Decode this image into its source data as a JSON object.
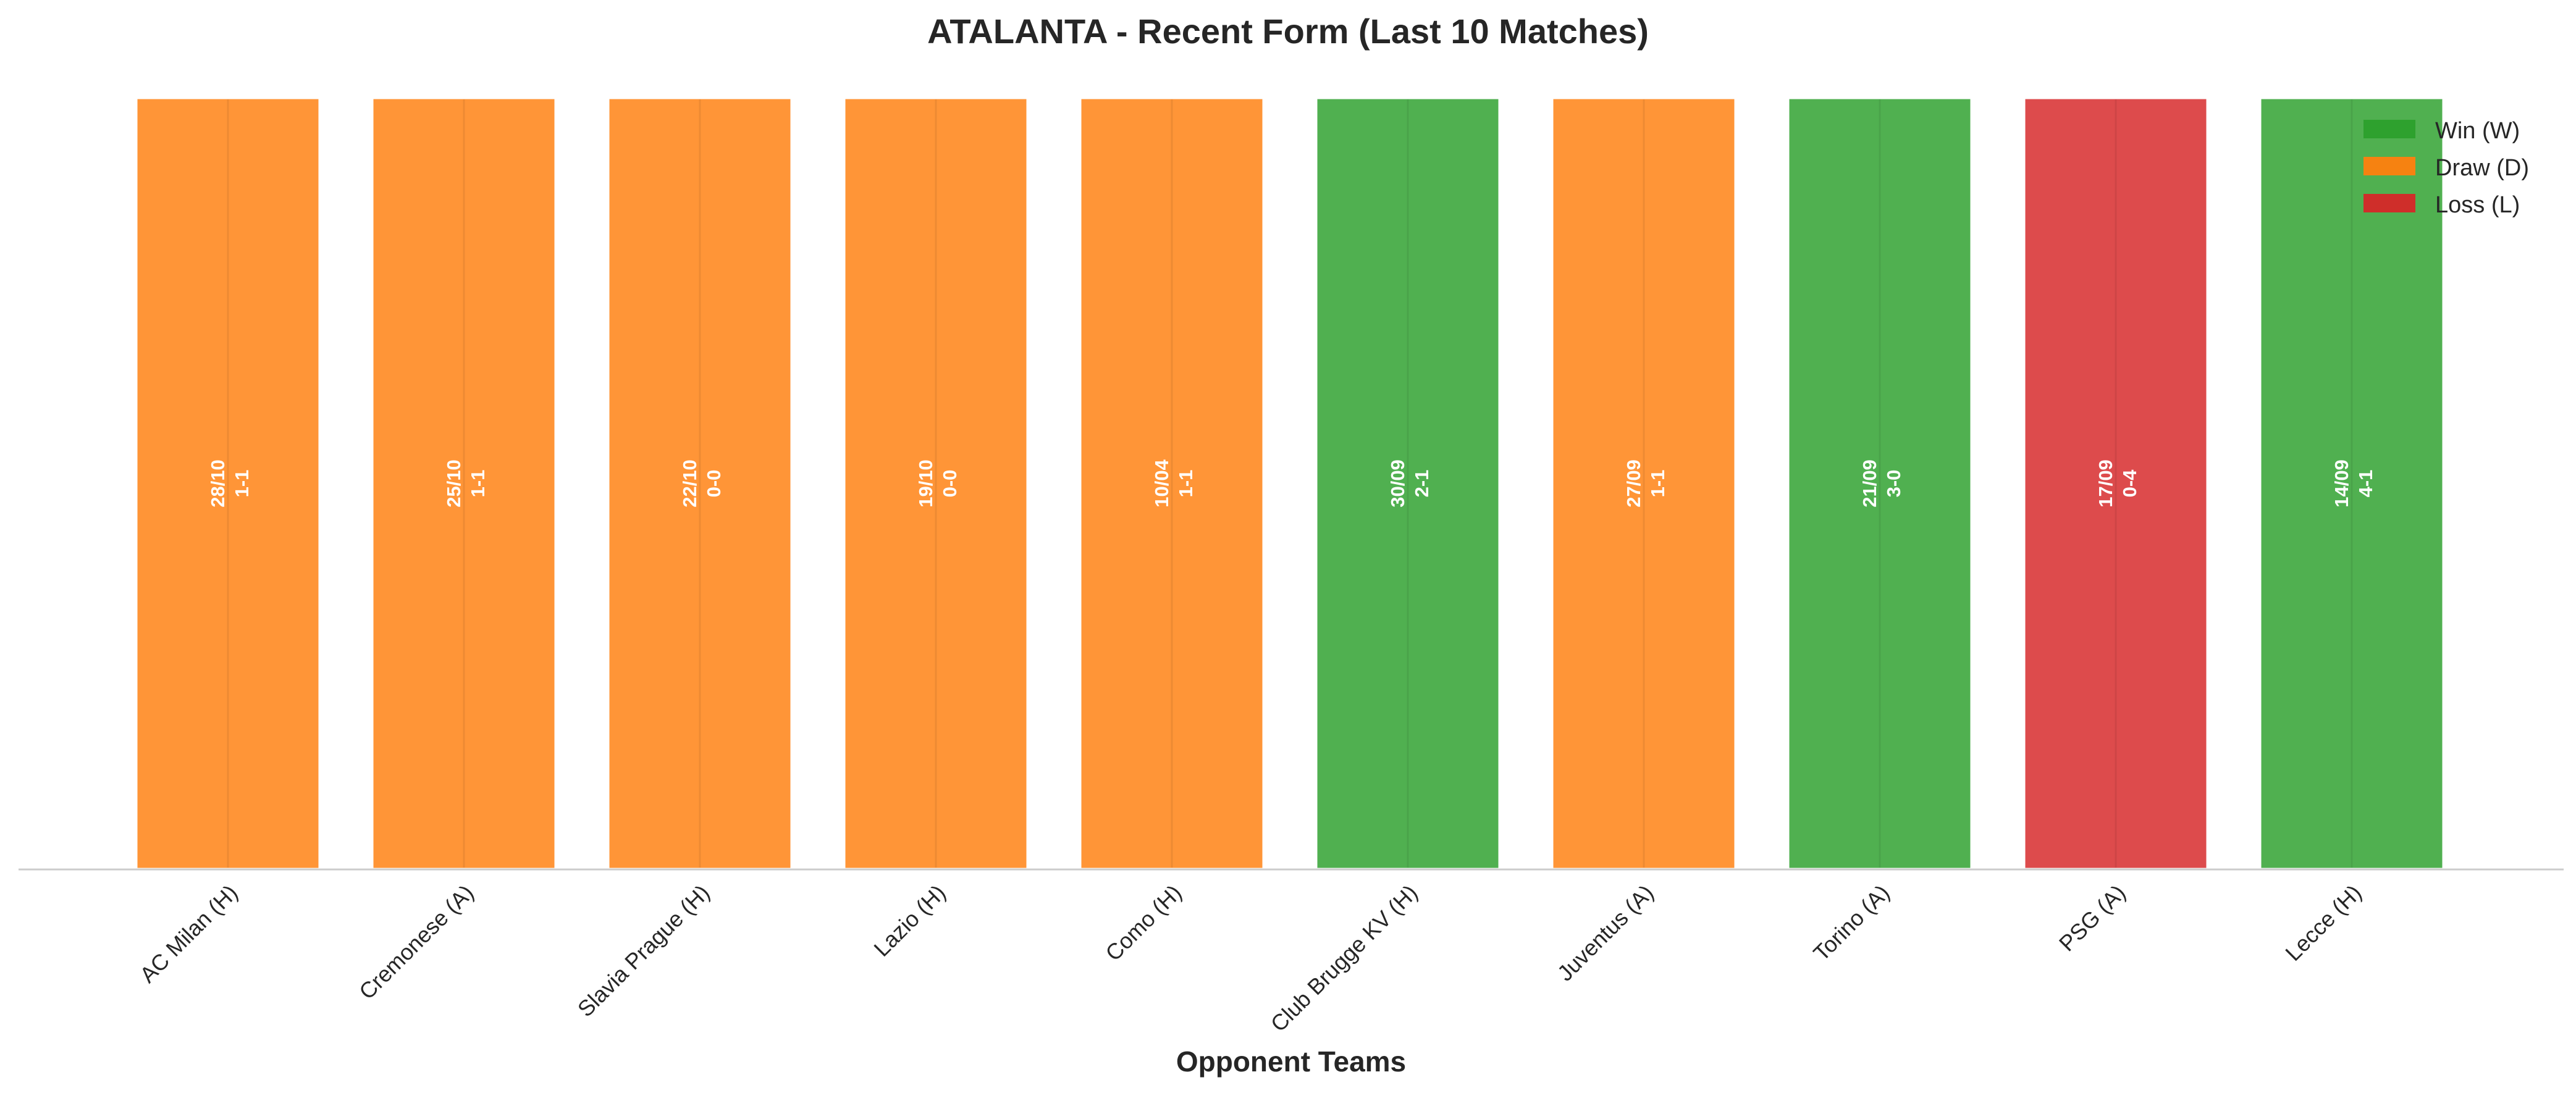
{
  "chart_data": {
    "type": "bar",
    "title": "ATALANTA - Recent Form (Last 10 Matches)",
    "xlabel": "Opponent Teams",
    "ylabel": "",
    "ylim": [
      0,
      1
    ],
    "grid": false,
    "legend_position": "top-right",
    "categories": [
      "AC Milan (H)",
      "Cremonese (A)",
      "Slavia Prague (H)",
      "Lazio (H)",
      "Como (H)",
      "Club Brugge KV (H)",
      "Juventus (A)",
      "Torino (A)",
      "PSG (A)",
      "Lecce (H)"
    ],
    "values": [
      1,
      1,
      1,
      1,
      1,
      1,
      1,
      1,
      1,
      1
    ],
    "results": [
      "D",
      "D",
      "D",
      "D",
      "D",
      "W",
      "D",
      "W",
      "L",
      "W"
    ],
    "dates": [
      "28/10",
      "25/10",
      "22/10",
      "19/10",
      "10/04",
      "30/09",
      "27/09",
      "21/09",
      "17/09",
      "14/09"
    ],
    "scores": [
      "1-1",
      "1-1",
      "0-0",
      "0-0",
      "1-1",
      "2-1",
      "1-1",
      "3-0",
      "0-4",
      "4-1"
    ],
    "legend": [
      {
        "key": "W",
        "label": "Win (W)",
        "color": "#2ca02c"
      },
      {
        "key": "D",
        "label": "Draw (D)",
        "color": "#ff7f0e"
      },
      {
        "key": "L",
        "label": "Loss (L)",
        "color": "#d62728"
      }
    ]
  }
}
